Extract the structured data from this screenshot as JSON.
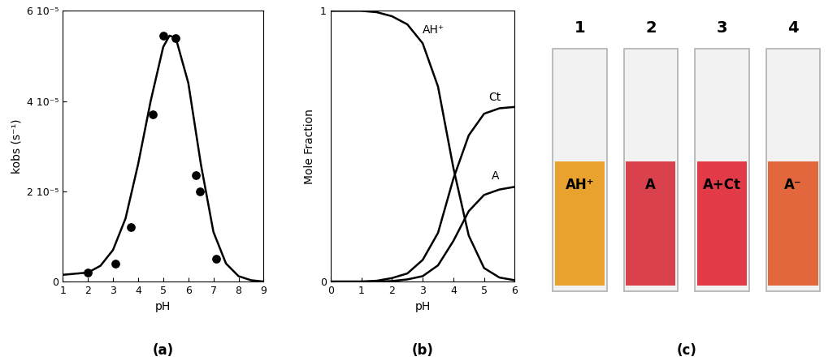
{
  "chart_data": [
    {
      "type": "scatter_line",
      "caption": "(a)",
      "x_label": "pH",
      "y_label": "kobs (s⁻¹)",
      "xlim": [
        1,
        9
      ],
      "xticks": [
        1,
        2,
        3,
        4,
        5,
        6,
        7,
        8,
        9
      ],
      "ylim": [
        0,
        6e-05
      ],
      "yticks": [
        0,
        {
          "value": 2e-05,
          "label": "2 10⁻⁵"
        },
        {
          "value": 4e-05,
          "label": "4 10⁻⁵"
        },
        {
          "value": 6e-05,
          "label": "6 10⁻⁵"
        }
      ],
      "series": [
        {
          "type": "scatter",
          "color": "#000000",
          "marker": "o",
          "x": [
            2.0,
            3.1,
            3.7,
            4.6,
            5.0,
            5.5,
            6.3,
            6.45,
            7.1
          ],
          "values": [
            2e-06,
            4e-06,
            1.2e-05,
            3.7e-05,
            5.45e-05,
            5.4e-05,
            2.35e-05,
            2e-05,
            5e-06
          ]
        },
        {
          "type": "line",
          "color": "#000000",
          "line_style": "solid",
          "x": [
            1,
            2,
            2.5,
            3,
            3.5,
            4,
            4.5,
            5,
            5.25,
            5.5,
            6,
            6.5,
            7,
            7.5,
            8,
            8.5,
            9
          ],
          "values": [
            1.5e-06,
            2e-06,
            3.5e-06,
            7e-06,
            1.4e-05,
            2.6e-05,
            4e-05,
            5.2e-05,
            5.45e-05,
            5.4e-05,
            4.4e-05,
            2.6e-05,
            1.1e-05,
            4e-06,
            1.2e-06,
            3e-07,
            0
          ]
        }
      ]
    },
    {
      "type": "line",
      "caption": "(b)",
      "x_label": "pH",
      "y_label": "Mole Fraction",
      "xlim": [
        0,
        6
      ],
      "xticks": [
        0,
        1,
        2,
        3,
        4,
        5,
        6
      ],
      "ylim": [
        0,
        1
      ],
      "yticks": [
        0,
        1
      ],
      "x": [
        0,
        0.5,
        1,
        1.5,
        2,
        2.5,
        3,
        3.5,
        4,
        4.5,
        5,
        5.5,
        6
      ],
      "series": [
        {
          "name": "AH⁺",
          "color": "#000000",
          "values": [
            1,
            1,
            1,
            0.995,
            0.98,
            0.95,
            0.88,
            0.72,
            0.42,
            0.17,
            0.05,
            0.015,
            0.005
          ]
        },
        {
          "name": "Ct",
          "color": "#000000",
          "values": [
            0,
            0,
            0,
            0.003,
            0.013,
            0.03,
            0.08,
            0.18,
            0.38,
            0.54,
            0.62,
            0.64,
            0.645
          ]
        },
        {
          "name": "A",
          "color": "#000000",
          "values": [
            0,
            0,
            0,
            0,
            0.002,
            0.008,
            0.02,
            0.06,
            0.15,
            0.26,
            0.32,
            0.34,
            0.35
          ]
        }
      ]
    }
  ],
  "photo_panel": {
    "caption": "(c)",
    "cuvettes": [
      {
        "number": "1",
        "label": "AH⁺",
        "color": "#e9a22e"
      },
      {
        "number": "2",
        "label": "A",
        "color": "#d9414c"
      },
      {
        "number": "3",
        "label": "A+Ct",
        "color": "#e23a47"
      },
      {
        "number": "4",
        "label": "A⁻",
        "color": "#e2673c"
      }
    ]
  }
}
